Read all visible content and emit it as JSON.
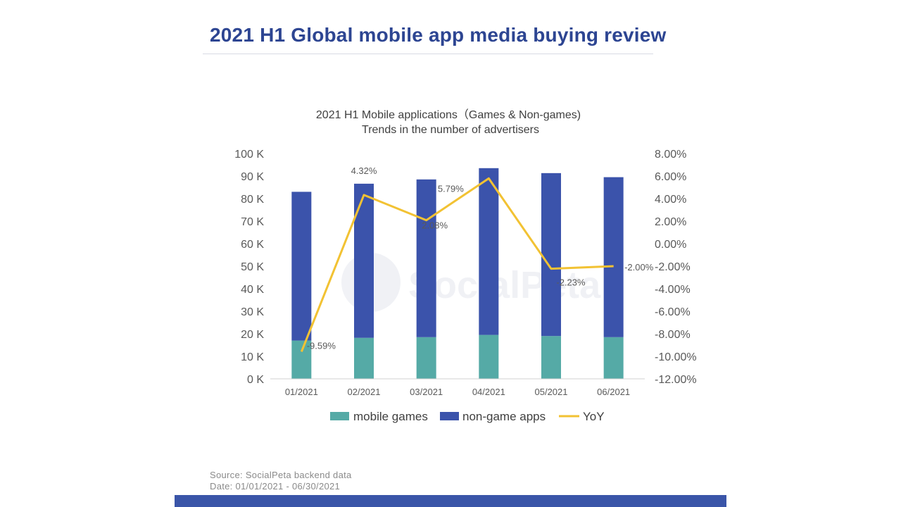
{
  "page": {
    "title": "2021 H1 Global mobile app media buying review",
    "source": "Source: SocialPeta backend data",
    "date": "Date: 01/01/2021 - 06/30/2021",
    "watermark": "SocialPeta"
  },
  "colors": {
    "title": "#2d4592",
    "mobile_games": "#55aaa6",
    "non_game_apps": "#3b53ab",
    "yoy": "#f2c233",
    "bottom_bar": "#3a55a8"
  },
  "chart_data": {
    "type": "bar",
    "stacked": true,
    "title": "2021 H1 Mobile applications（Games & Non-games)",
    "subtitle": "Trends in the number of advertisers",
    "categories": [
      "01/2021",
      "02/2021",
      "03/2021",
      "04/2021",
      "05/2021",
      "06/2021"
    ],
    "series": [
      {
        "name": "mobile games",
        "type": "bar",
        "axis": "left",
        "values": [
          17000,
          18200,
          18500,
          19500,
          19000,
          18500
        ]
      },
      {
        "name": "non-game apps",
        "type": "bar",
        "axis": "left",
        "values": [
          66000,
          68400,
          70000,
          74000,
          72300,
          71000
        ]
      },
      {
        "name": "YoY",
        "type": "line",
        "axis": "right",
        "values": [
          -9.59,
          4.32,
          2.08,
          5.79,
          -2.23,
          -2.0
        ],
        "labels": [
          "-9.59%",
          "4.32%",
          "2.08%",
          "5.79%",
          "-2.23%",
          "-2.00%"
        ]
      }
    ],
    "y_left": {
      "ylim": [
        0,
        100000
      ],
      "ticks": [
        0,
        10000,
        20000,
        30000,
        40000,
        50000,
        60000,
        70000,
        80000,
        90000,
        100000
      ],
      "tick_labels": [
        "0 K",
        "10 K",
        "20 K",
        "30 K",
        "40 K",
        "50 K",
        "60 K",
        "70 K",
        "80 K",
        "90 K",
        "100 K"
      ]
    },
    "y_right": {
      "ylim": [
        -12,
        8
      ],
      "ticks": [
        -12,
        -10,
        -8,
        -6,
        -4,
        -2,
        0,
        2,
        4,
        6,
        8
      ],
      "tick_labels": [
        "-12.00%",
        "-10.00%",
        "-8.00%",
        "-6.00%",
        "-4.00%",
        "-2.00%",
        "0.00%",
        "2.00%",
        "4.00%",
        "6.00%",
        "8.00%"
      ]
    },
    "legend": [
      "mobile games",
      "non-game apps",
      "YoY"
    ],
    "legend_position": "bottom",
    "grid": false
  }
}
